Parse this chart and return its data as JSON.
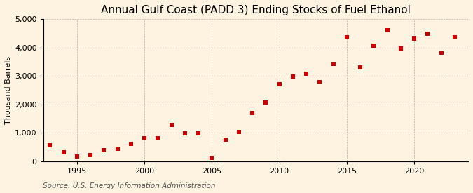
{
  "title": "Annual Gulf Coast (PADD 3) Ending Stocks of Fuel Ethanol",
  "ylabel": "Thousand Barrels",
  "source": "Source: U.S. Energy Information Administration",
  "years": [
    1993,
    1994,
    1995,
    1996,
    1997,
    1998,
    1999,
    2000,
    2001,
    2002,
    2003,
    2004,
    2005,
    2006,
    2007,
    2008,
    2009,
    2010,
    2011,
    2012,
    2013,
    2014,
    2015,
    2016,
    2017,
    2018,
    2019,
    2020,
    2021,
    2022,
    2023
  ],
  "values": [
    560,
    310,
    160,
    220,
    390,
    430,
    620,
    800,
    820,
    1280,
    980,
    980,
    130,
    760,
    1020,
    1700,
    2070,
    2720,
    2990,
    3090,
    2790,
    3420,
    4360,
    3300,
    4060,
    4620,
    3960,
    4310,
    4490,
    3820,
    4370
  ],
  "marker_color": "#cc0000",
  "marker_size": 4,
  "bg_color": "#fdf3e0",
  "plot_bg_color": "#fdf3e0",
  "grid_color": "#999999",
  "ylim": [
    0,
    5000
  ],
  "yticks": [
    0,
    1000,
    2000,
    3000,
    4000,
    5000
  ],
  "ytick_labels": [
    "0",
    "1,000",
    "2,000",
    "3,000",
    "4,000",
    "5,000"
  ],
  "xlim": [
    1992.5,
    2024
  ],
  "xticks": [
    1995,
    2000,
    2005,
    2010,
    2015,
    2020
  ],
  "title_fontsize": 11,
  "label_fontsize": 8,
  "tick_fontsize": 8,
  "source_fontsize": 7.5
}
